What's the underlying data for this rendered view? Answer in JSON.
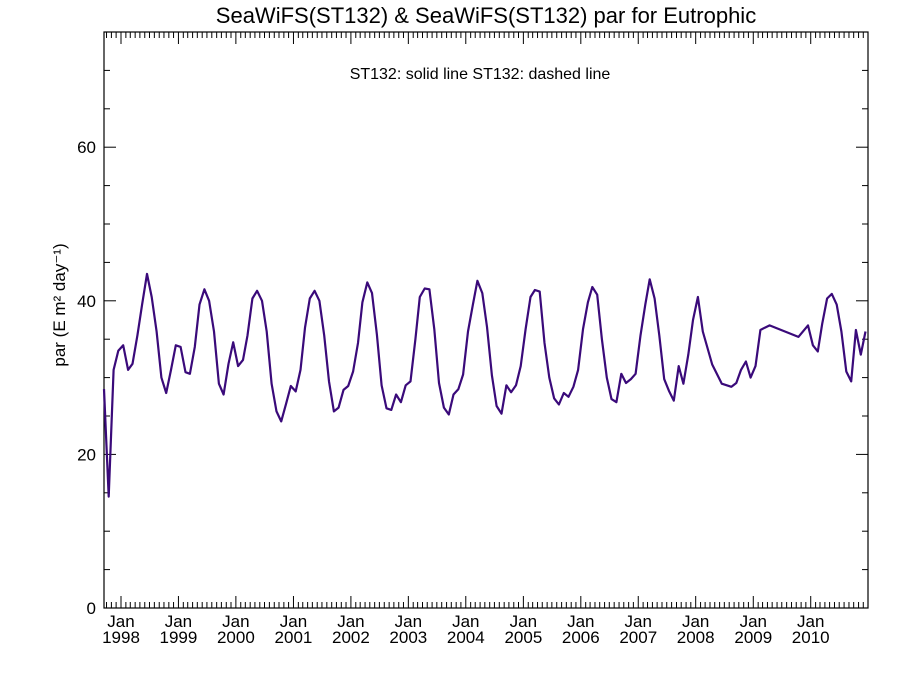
{
  "chart_data": {
    "type": "line",
    "title": "SeaWiFS(ST132) & SeaWiFS(ST132)  par for Eutrophic",
    "legend_text": "ST132: solid line   ST132: dashed line",
    "ylabel": "par (E m² day⁻¹)",
    "xlabel": "",
    "ylim": [
      0,
      75
    ],
    "xlim": [
      "1997-09-15",
      "2010-12-31"
    ],
    "yticks": [
      0,
      20,
      40,
      60
    ],
    "yticklabels": [
      "0",
      "20",
      "40",
      "60"
    ],
    "xtick_labels_top": [
      "Jan",
      "Jan",
      "Jan",
      "Jan",
      "Jan",
      "Jan",
      "Jan",
      "Jan",
      "Jan",
      "Jan",
      "Jan",
      "Jan",
      "Jan"
    ],
    "xtick_labels_bottom": [
      "1998",
      "1999",
      "2000",
      "2001",
      "2002",
      "2003",
      "2004",
      "2005",
      "2006",
      "2007",
      "2008",
      "2009",
      "2010"
    ],
    "xtick_dates": [
      "1998-01-01",
      "1999-01-01",
      "2000-01-01",
      "2001-01-01",
      "2002-01-01",
      "2003-01-01",
      "2004-01-01",
      "2005-01-01",
      "2006-01-01",
      "2007-01-01",
      "2008-01-01",
      "2009-01-01",
      "2010-01-01"
    ],
    "grid": false,
    "series": [
      {
        "color": "#3a0a7a",
        "linestyle": "solid",
        "x": [
          "1997-09-15",
          "1997-10-15",
          "1997-11-15",
          "1997-12-15",
          "1998-01-15",
          "1998-02-15",
          "1998-03-15",
          "1998-04-15",
          "1998-05-15",
          "1998-06-15",
          "1998-07-15",
          "1998-08-15",
          "1998-09-15",
          "1998-10-15",
          "1998-11-15",
          "1998-12-15",
          "1999-01-15",
          "1999-02-15",
          "1999-03-15",
          "1999-04-15",
          "1999-05-15",
          "1999-06-15",
          "1999-07-15",
          "1999-08-15",
          "1999-09-15",
          "1999-10-15",
          "1999-11-15",
          "1999-12-15",
          "2000-01-15",
          "2000-02-15",
          "2000-03-15",
          "2000-04-15",
          "2000-05-15",
          "2000-06-15",
          "2000-07-15",
          "2000-08-15",
          "2000-09-15",
          "2000-10-15",
          "2000-11-15",
          "2000-12-15",
          "2001-01-15",
          "2001-02-15",
          "2001-03-15",
          "2001-04-15",
          "2001-05-15",
          "2001-06-15",
          "2001-07-15",
          "2001-08-15",
          "2001-09-15",
          "2001-10-15",
          "2001-11-15",
          "2001-12-15",
          "2002-01-15",
          "2002-02-15",
          "2002-03-15",
          "2002-04-15",
          "2002-05-15",
          "2002-06-15",
          "2002-07-15",
          "2002-08-15",
          "2002-09-15",
          "2002-10-15",
          "2002-11-15",
          "2002-12-15",
          "2003-01-15",
          "2003-02-15",
          "2003-03-15",
          "2003-04-15",
          "2003-05-15",
          "2003-06-15",
          "2003-07-15",
          "2003-08-15",
          "2003-09-15",
          "2003-10-15",
          "2003-11-15",
          "2003-12-15",
          "2004-01-15",
          "2004-02-15",
          "2004-03-15",
          "2004-04-15",
          "2004-05-15",
          "2004-06-15",
          "2004-07-15",
          "2004-08-15",
          "2004-09-15",
          "2004-10-15",
          "2004-11-15",
          "2004-12-15",
          "2005-01-15",
          "2005-02-15",
          "2005-03-15",
          "2005-04-15",
          "2005-05-15",
          "2005-06-15",
          "2005-07-15",
          "2005-08-15",
          "2005-09-15",
          "2005-10-15",
          "2005-11-15",
          "2005-12-15",
          "2006-01-15",
          "2006-02-15",
          "2006-03-15",
          "2006-04-15",
          "2006-05-15",
          "2006-06-15",
          "2006-07-15",
          "2006-08-15",
          "2006-09-15",
          "2006-10-15",
          "2006-11-15",
          "2006-12-15",
          "2007-01-15",
          "2007-02-15",
          "2007-03-15",
          "2007-04-15",
          "2007-05-15",
          "2007-06-15",
          "2007-07-15",
          "2007-08-15",
          "2007-09-15",
          "2007-10-15",
          "2007-11-15",
          "2007-12-15",
          "2008-01-15",
          "2008-02-15",
          "2008-04-15",
          "2008-06-15",
          "2008-08-15",
          "2008-09-15",
          "2008-10-15",
          "2008-11-15",
          "2008-12-15",
          "2009-01-15",
          "2009-02-15",
          "2009-03-15",
          "2009-04-15",
          "2009-10-15",
          "2009-12-15",
          "2010-01-15",
          "2010-02-15",
          "2010-03-15",
          "2010-04-15",
          "2010-05-15",
          "2010-06-15",
          "2010-07-15",
          "2010-08-15",
          "2010-09-15",
          "2010-10-15",
          "2010-11-15",
          "2010-12-15"
        ],
        "y": [
          28.5,
          14.5,
          31.0,
          33.5,
          34.2,
          31.0,
          31.8,
          35.5,
          39.5,
          43.5,
          40.5,
          36.0,
          30.0,
          28.0,
          31.0,
          34.2,
          34.0,
          30.7,
          30.5,
          34.0,
          39.5,
          41.5,
          40.0,
          36.0,
          29.2,
          27.8,
          31.8,
          34.6,
          31.5,
          32.3,
          35.5,
          40.3,
          41.3,
          40.0,
          36.0,
          29.2,
          25.6,
          24.3,
          26.6,
          28.9,
          28.2,
          31.0,
          36.5,
          40.3,
          41.3,
          40.0,
          35.5,
          29.5,
          25.6,
          26.1,
          28.4,
          28.9,
          30.8,
          34.5,
          39.8,
          42.4,
          41.0,
          35.6,
          29.0,
          26.0,
          25.8,
          27.8,
          26.8,
          29.0,
          29.5,
          35.0,
          40.5,
          41.6,
          41.5,
          36.3,
          29.3,
          26.1,
          25.2,
          27.8,
          28.5,
          30.4,
          36.0,
          39.5,
          42.6,
          41.0,
          36.6,
          30.3,
          26.3,
          25.3,
          29.0,
          28.1,
          29.0,
          31.5,
          36.3,
          40.5,
          41.4,
          41.2,
          34.5,
          30.0,
          27.3,
          26.5,
          28.0,
          27.5,
          28.8,
          31.0,
          36.3,
          39.8,
          41.8,
          40.8,
          35.0,
          30.0,
          27.2,
          26.8,
          30.5,
          29.3,
          29.8,
          30.5,
          35.5,
          39.5,
          42.8,
          40.3,
          35.5,
          29.8,
          28.3,
          27.0,
          31.5,
          29.2,
          33.0,
          37.5,
          40.5,
          36.0,
          31.7,
          29.2,
          28.8,
          29.3,
          31.0,
          32.1,
          30.0,
          31.5,
          36.2,
          36.5,
          36.8,
          35.3,
          36.8,
          34.2,
          33.4,
          37.0,
          40.3,
          40.9,
          39.5,
          36.0,
          30.8,
          29.5,
          36.2,
          33.0,
          36.0
        ]
      }
    ]
  }
}
